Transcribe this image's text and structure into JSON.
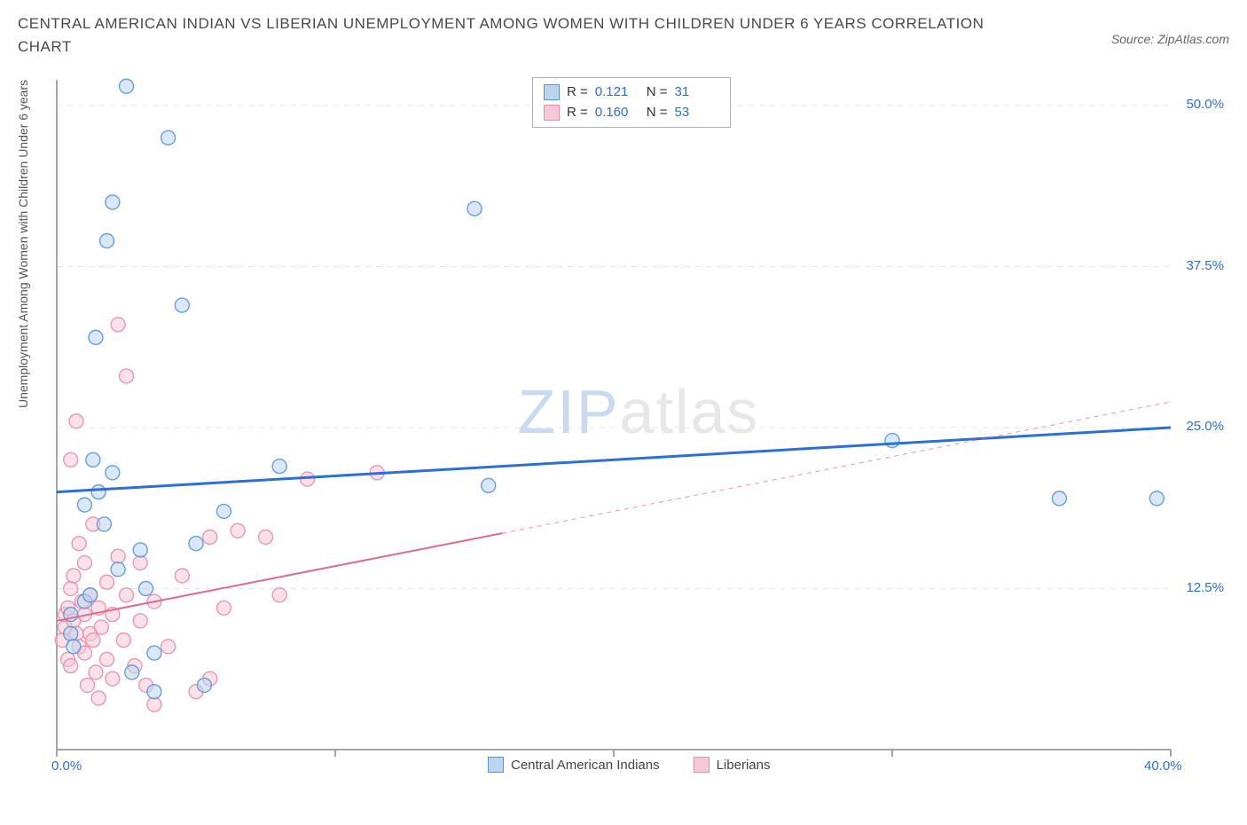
{
  "title": "CENTRAL AMERICAN INDIAN VS LIBERIAN UNEMPLOYMENT AMONG WOMEN WITH CHILDREN UNDER 6 YEARS CORRELATION CHART",
  "source": "Source: ZipAtlas.com",
  "y_axis_label": "Unemployment Among Women with Children Under 6 years",
  "watermark": {
    "part1": "ZIP",
    "part2": "atlas"
  },
  "chart": {
    "type": "scatter",
    "background_color": "#ffffff",
    "grid_color": "#e5e5e5",
    "axis_color": "#888888",
    "xlim": [
      0,
      40
    ],
    "ylim": [
      0,
      52
    ],
    "x_ticks": [
      0,
      10,
      20,
      30,
      40
    ],
    "x_tick_labels": [
      "0.0%",
      "",
      "",
      "",
      "40.0%"
    ],
    "y_right_ticks": [
      12.5,
      25.0,
      37.5,
      50.0
    ],
    "y_right_labels": [
      "12.5%",
      "25.0%",
      "37.5%",
      "50.0%"
    ],
    "marker_radius": 8,
    "marker_opacity": 0.55,
    "series": [
      {
        "name": "Central American Indians",
        "color_fill": "#bcd4f0",
        "color_stroke": "#5a96d8",
        "R": "0.121",
        "N": "31",
        "trend": {
          "y0": 20.0,
          "y1": 25.0,
          "solid_until_x": 40,
          "stroke": "#2b6fd8",
          "width": 3
        },
        "points": [
          [
            0.5,
            9.0
          ],
          [
            0.5,
            10.5
          ],
          [
            0.6,
            8.0
          ],
          [
            1.0,
            11.5
          ],
          [
            1.0,
            19.0
          ],
          [
            1.2,
            12.0
          ],
          [
            1.3,
            22.5
          ],
          [
            1.4,
            32.0
          ],
          [
            1.5,
            20.0
          ],
          [
            1.7,
            17.5
          ],
          [
            1.8,
            39.5
          ],
          [
            2.0,
            42.5
          ],
          [
            2.0,
            21.5
          ],
          [
            2.2,
            14.0
          ],
          [
            2.5,
            51.5
          ],
          [
            2.7,
            6.0
          ],
          [
            3.0,
            15.5
          ],
          [
            3.2,
            12.5
          ],
          [
            3.5,
            7.5
          ],
          [
            3.5,
            4.5
          ],
          [
            4.0,
            47.5
          ],
          [
            4.5,
            34.5
          ],
          [
            5.0,
            16.0
          ],
          [
            5.3,
            5.0
          ],
          [
            6.0,
            18.5
          ],
          [
            8.0,
            22.0
          ],
          [
            15.0,
            42.0
          ],
          [
            15.5,
            20.5
          ],
          [
            30.0,
            24.0
          ],
          [
            36.0,
            19.5
          ],
          [
            39.5,
            19.5
          ]
        ]
      },
      {
        "name": "Liberians",
        "color_fill": "#f5c9d6",
        "color_stroke": "#e58fac",
        "R": "0.160",
        "N": "53",
        "trend": {
          "y0": 10.0,
          "y1": 27.0,
          "solid_until_x": 16,
          "stroke": "#e06a8f",
          "width": 2
        },
        "points": [
          [
            0.2,
            8.5
          ],
          [
            0.3,
            9.5
          ],
          [
            0.3,
            10.5
          ],
          [
            0.4,
            7.0
          ],
          [
            0.4,
            11.0
          ],
          [
            0.5,
            12.5
          ],
          [
            0.5,
            6.5
          ],
          [
            0.5,
            22.5
          ],
          [
            0.6,
            10.0
          ],
          [
            0.6,
            13.5
          ],
          [
            0.7,
            9.0
          ],
          [
            0.7,
            25.5
          ],
          [
            0.8,
            8.0
          ],
          [
            0.8,
            16.0
          ],
          [
            0.9,
            11.5
          ],
          [
            1.0,
            7.5
          ],
          [
            1.0,
            10.5
          ],
          [
            1.0,
            14.5
          ],
          [
            1.1,
            5.0
          ],
          [
            1.2,
            9.0
          ],
          [
            1.2,
            12.0
          ],
          [
            1.3,
            8.5
          ],
          [
            1.3,
            17.5
          ],
          [
            1.4,
            6.0
          ],
          [
            1.5,
            11.0
          ],
          [
            1.5,
            4.0
          ],
          [
            1.6,
            9.5
          ],
          [
            1.8,
            13.0
          ],
          [
            1.8,
            7.0
          ],
          [
            2.0,
            10.5
          ],
          [
            2.0,
            5.5
          ],
          [
            2.2,
            15.0
          ],
          [
            2.2,
            33.0
          ],
          [
            2.4,
            8.5
          ],
          [
            2.5,
            12.0
          ],
          [
            2.5,
            29.0
          ],
          [
            2.8,
            6.5
          ],
          [
            3.0,
            10.0
          ],
          [
            3.0,
            14.5
          ],
          [
            3.2,
            5.0
          ],
          [
            3.5,
            11.5
          ],
          [
            3.5,
            3.5
          ],
          [
            4.0,
            8.0
          ],
          [
            4.5,
            13.5
          ],
          [
            5.0,
            4.5
          ],
          [
            5.5,
            16.5
          ],
          [
            5.5,
            5.5
          ],
          [
            6.0,
            11.0
          ],
          [
            6.5,
            17.0
          ],
          [
            7.5,
            16.5
          ],
          [
            8.0,
            12.0
          ],
          [
            9.0,
            21.0
          ],
          [
            11.5,
            21.5
          ]
        ]
      }
    ],
    "bottom_legend": [
      {
        "label": "Central American Indians",
        "fill": "#bcd4f0",
        "stroke": "#5a96d8"
      },
      {
        "label": "Liberians",
        "fill": "#f5c9d6",
        "stroke": "#e58fac"
      }
    ]
  }
}
